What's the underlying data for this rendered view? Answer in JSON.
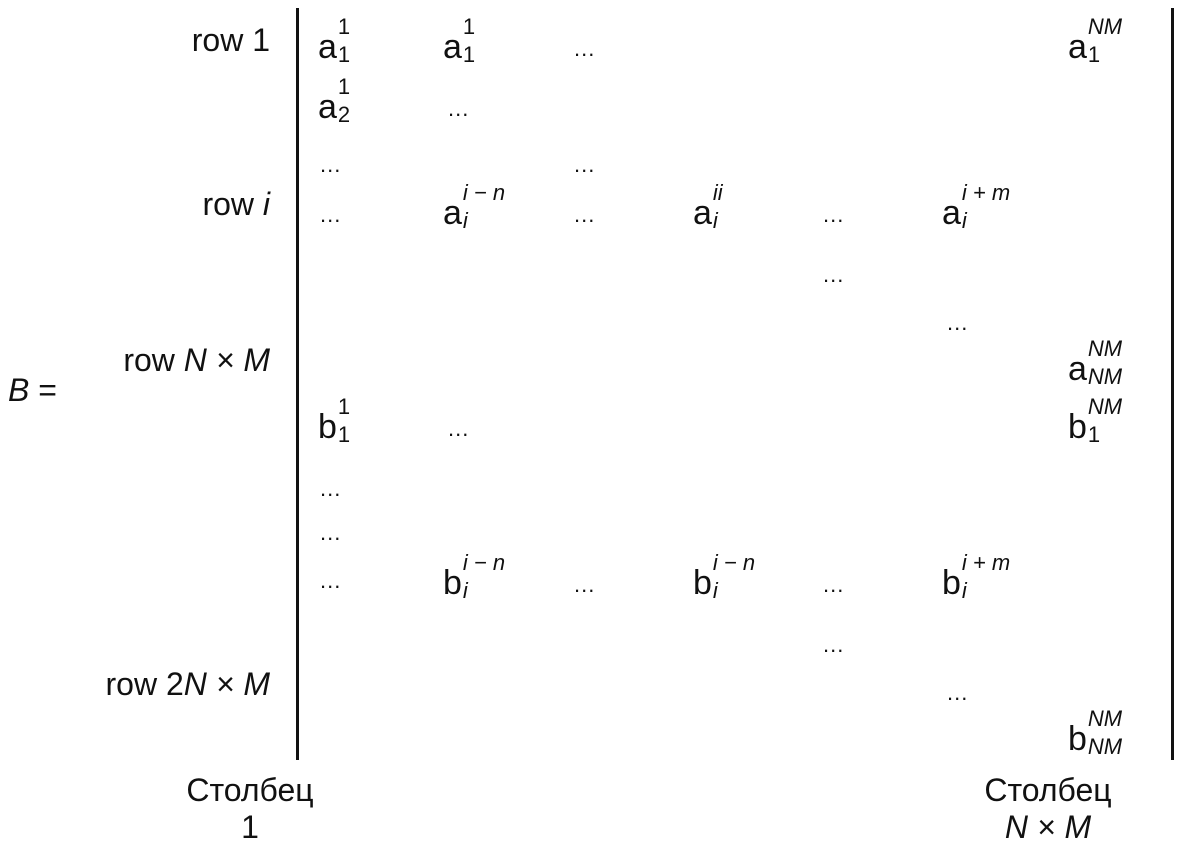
{
  "lhs": {
    "symbol": "B",
    "equals": "="
  },
  "row_labels": {
    "row1": {
      "text": "row 1"
    },
    "rowi": {
      "word": "row ",
      "var": "i"
    },
    "rowNM": {
      "word": "row ",
      "expr": "N × M"
    },
    "row2NM": {
      "word": "row 2",
      "expr": "N × M"
    }
  },
  "column_labels": {
    "first": {
      "word": "Столбец",
      "index": "1"
    },
    "last": {
      "word": "Столбец",
      "index": "N × M"
    }
  },
  "dots": "...",
  "entries": {
    "a11_first": {
      "base": "a",
      "sub": "1",
      "sup": "1"
    },
    "a11_second": {
      "base": "a",
      "sub": "1",
      "sup": "1"
    },
    "a1NM": {
      "base": "a",
      "sub": "1",
      "sup": "NM"
    },
    "a21": {
      "base": "a",
      "sub": "2",
      "sup": "1"
    },
    "ai_i_minus_n": {
      "base": "a",
      "sub": "i",
      "sup": "i − n"
    },
    "ai_ii": {
      "base": "a",
      "sub": "i",
      "sup": "ii"
    },
    "ai_i_plus_m": {
      "base": "a",
      "sub": "i",
      "sup": "i + m"
    },
    "aNMNM": {
      "base": "a",
      "sub": "NM",
      "sup": "NM"
    },
    "b11": {
      "base": "b",
      "sub": "1",
      "sup": "1"
    },
    "b1NM": {
      "base": "b",
      "sub": "1",
      "sup": "NM"
    },
    "bi_i_minus_n_a": {
      "base": "b",
      "sub": "i",
      "sup": "i − n"
    },
    "bi_i_minus_n_b": {
      "base": "b",
      "sub": "i",
      "sup": "i − n"
    },
    "bi_i_plus_m": {
      "base": "b",
      "sub": "i",
      "sup": "i + m"
    },
    "bNMNM": {
      "base": "b",
      "sub": "NM",
      "sup": "NM"
    }
  }
}
